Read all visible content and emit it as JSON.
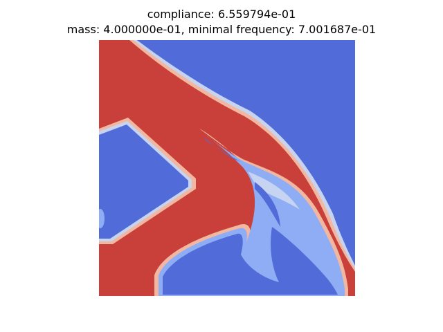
{
  "figure": {
    "title_line1": "compliance: 6.559794e-01",
    "title_line2": "mass: 4.000000e-01, minimal frequency: 7.001687e-01",
    "colormap": {
      "name": "coolwarm",
      "solid": "#c9403a",
      "void": "#516bd9",
      "light_blue": "#8fadf5",
      "pale_blue": "#c6d4f2",
      "pale_red": "#f2b7a0",
      "mid_red": "#e0806a"
    }
  }
}
